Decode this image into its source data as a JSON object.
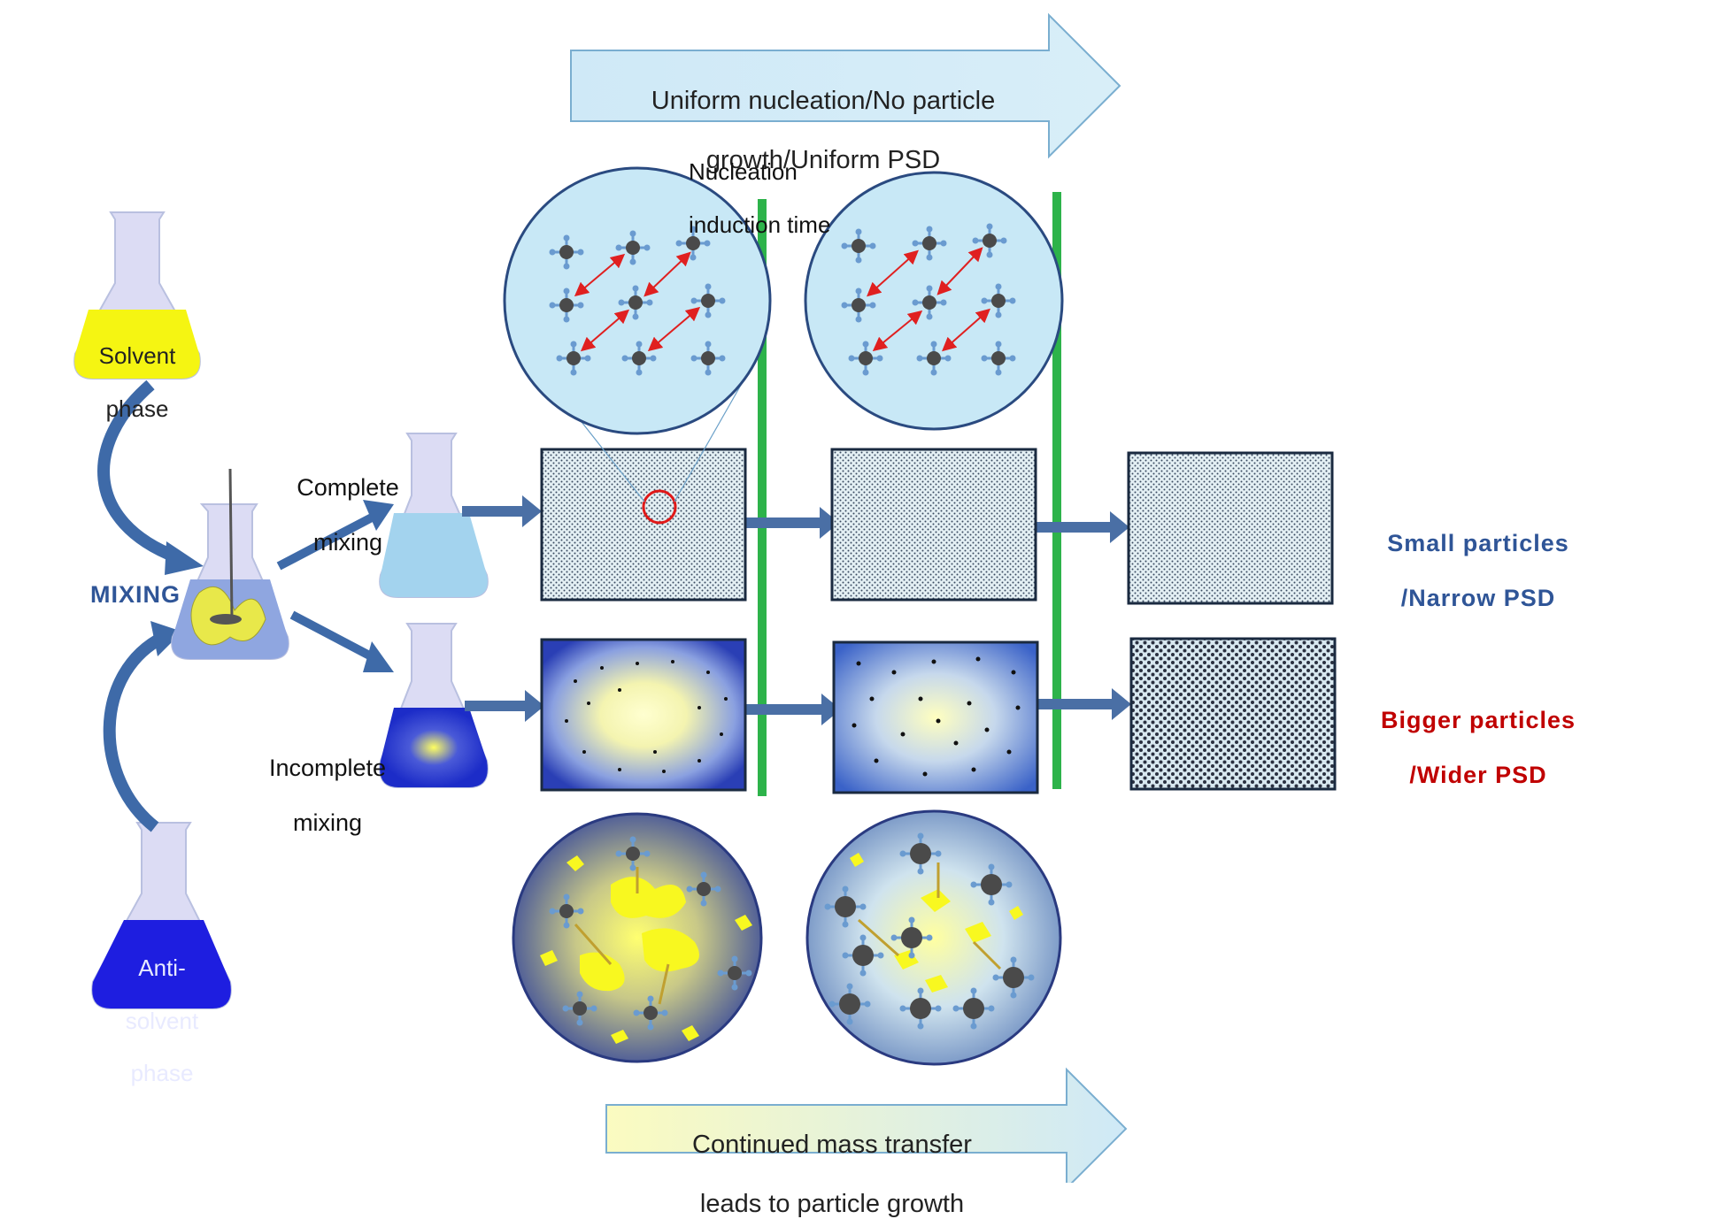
{
  "top_arrow": {
    "line1": "Uniform nucleation/No particle",
    "line2": "growth/Uniform PSD"
  },
  "bottom_arrow": {
    "line1": "Continued mass transfer",
    "line2": "leads to particle growth"
  },
  "nucleation_label": {
    "line1": "Nucleation",
    "line2": "induction time"
  },
  "flasks": {
    "solvent": {
      "line1": "Solvent",
      "line2": "phase"
    },
    "antisolvent": {
      "line1": "Anti-",
      "line2": "solvent",
      "line3": "phase"
    }
  },
  "mixing_label": "MIXING",
  "complete_mixing": {
    "line1": "Complete",
    "line2": "mixing"
  },
  "incomplete_mixing": {
    "line1": "Incomplete",
    "line2": "mixing"
  },
  "outcomes": {
    "small": {
      "line1": "Small particles",
      "line2": "/Narrow PSD"
    },
    "bigger": {
      "line1": "Bigger particles",
      "line2": "/Wider PSD"
    }
  },
  "colors": {
    "blue_text": "#2f5597",
    "red_text": "#c00000",
    "green_line": "#2db34a",
    "arrow_fill": "#4a6fa5"
  }
}
